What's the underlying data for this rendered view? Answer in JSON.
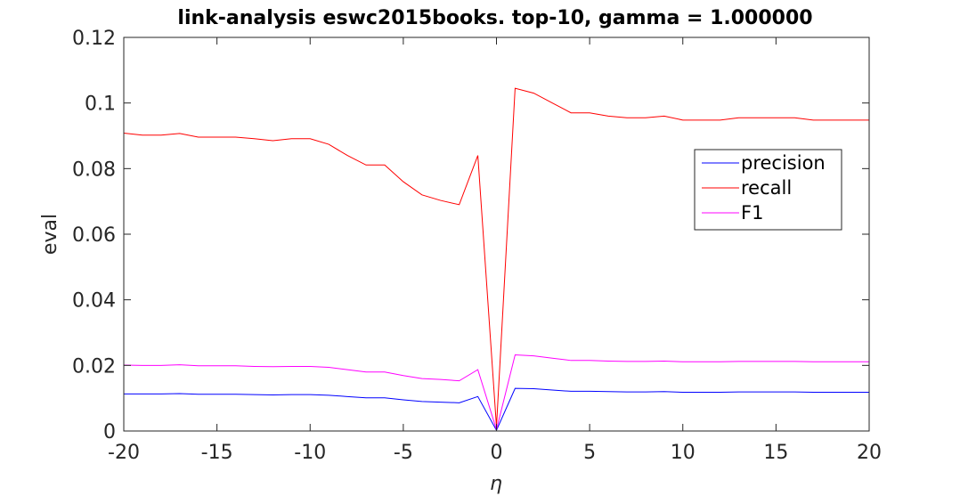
{
  "chart_data": {
    "type": "line",
    "title": "link-analysis eswc2015books. top-10, gamma = 1.000000",
    "xlabel": "η",
    "ylabel": "eval",
    "xlim": [
      -20,
      20
    ],
    "ylim": [
      0,
      0.12
    ],
    "xticks": [
      -20,
      -15,
      -10,
      -5,
      0,
      5,
      10,
      15,
      20
    ],
    "xtick_labels": [
      "-20",
      "-15",
      "-10",
      "-5",
      "0",
      "5",
      "10",
      "15",
      "20"
    ],
    "yticks": [
      0,
      0.02,
      0.04,
      0.06,
      0.08,
      0.1,
      0.12
    ],
    "ytick_labels": [
      "0",
      "0.02",
      "0.04",
      "0.06",
      "0.08",
      "0.1",
      "0.12"
    ],
    "grid": false,
    "legend_position": "right",
    "x": [
      -20,
      -19,
      -18,
      -17,
      -16,
      -15,
      -14,
      -13,
      -12,
      -11,
      -10,
      -9,
      -8,
      -7,
      -6,
      -5,
      -4,
      -3,
      -2,
      -1,
      0,
      1,
      2,
      3,
      4,
      5,
      6,
      7,
      8,
      9,
      10,
      11,
      12,
      13,
      14,
      15,
      16,
      17,
      18,
      19,
      20
    ],
    "series": [
      {
        "name": "precision",
        "color": "#0000ff",
        "values": [
          0.0113,
          0.0113,
          0.0113,
          0.0114,
          0.0112,
          0.0112,
          0.0112,
          0.0111,
          0.011,
          0.0111,
          0.0111,
          0.0109,
          0.0105,
          0.0101,
          0.0101,
          0.0095,
          0.009,
          0.0088,
          0.0086,
          0.0105,
          0.0002,
          0.013,
          0.0129,
          0.0125,
          0.0121,
          0.0121,
          0.012,
          0.0119,
          0.0119,
          0.012,
          0.0118,
          0.0118,
          0.0118,
          0.0119,
          0.0119,
          0.0119,
          0.0119,
          0.0118,
          0.0118,
          0.0118,
          0.0118
        ]
      },
      {
        "name": "recall",
        "color": "#ff0000",
        "values": [
          0.0908,
          0.0902,
          0.0902,
          0.0907,
          0.0896,
          0.0896,
          0.0896,
          0.0891,
          0.0885,
          0.0891,
          0.0891,
          0.0874,
          0.084,
          0.0811,
          0.0811,
          0.076,
          0.072,
          0.0703,
          0.069,
          0.084,
          0.0013,
          0.1045,
          0.103,
          0.1,
          0.097,
          0.097,
          0.096,
          0.0955,
          0.0955,
          0.096,
          0.0948,
          0.0948,
          0.0948,
          0.0955,
          0.0955,
          0.0955,
          0.0955,
          0.0948,
          0.0948,
          0.0948,
          0.0948
        ]
      },
      {
        "name": "F1",
        "color": "#ff00ff",
        "values": [
          0.0201,
          0.02,
          0.02,
          0.0202,
          0.0199,
          0.0199,
          0.0199,
          0.0197,
          0.0196,
          0.0197,
          0.0197,
          0.0194,
          0.0187,
          0.018,
          0.018,
          0.0169,
          0.016,
          0.0157,
          0.0153,
          0.0187,
          0.0004,
          0.0232,
          0.0229,
          0.0222,
          0.0215,
          0.0215,
          0.0213,
          0.0212,
          0.0212,
          0.0213,
          0.0211,
          0.0211,
          0.0211,
          0.0212,
          0.0212,
          0.0212,
          0.0212,
          0.0211,
          0.0211,
          0.0211,
          0.0211
        ]
      }
    ]
  }
}
